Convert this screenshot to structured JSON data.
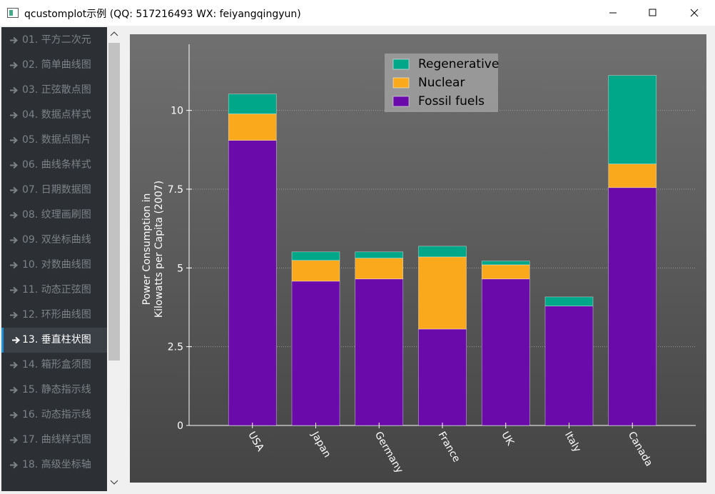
{
  "window": {
    "title": "qcustomplot示例 (QQ: 517216493 WX: feiyangqingyun)"
  },
  "sidebar": {
    "items": [
      "01. 平方二次元",
      "02. 简单曲线图",
      "03. 正弦散点图",
      "04. 数据点样式",
      "05. 数据点图片",
      "06. 曲线条样式",
      "07. 日期数据图",
      "08. 纹理画刷图",
      "09. 双坐标曲线",
      "10. 对数曲线图",
      "11. 动态正弦图",
      "12. 环形曲线图",
      "13. 垂直柱状图",
      "14. 箱形盒须图",
      "15. 静态指示线",
      "16. 动态指示线",
      "17. 曲线样式图",
      "18. 高级坐标轴"
    ],
    "selected_index": 12
  },
  "chart_data": {
    "type": "stacked_bar",
    "y_label": [
      "Power Consumption in",
      "Kilowatts per Capita (2007)"
    ],
    "categories": [
      "USA",
      "Japan",
      "Germany",
      "France",
      "UK",
      "Italy",
      "Canada"
    ],
    "series": [
      {
        "name": "Fossil fuels",
        "color": "#6a0aab",
        "values": [
          9.05,
          4.58,
          4.65,
          3.06,
          4.65,
          3.79,
          7.55
        ]
      },
      {
        "name": "Nuclear",
        "color": "#f9a91b",
        "values": [
          0.84,
          0.66,
          0.66,
          2.29,
          0.45,
          0,
          0.75
        ]
      },
      {
        "name": "Regenerative",
        "color": "#00a88a",
        "values": [
          0.63,
          0.27,
          0.2,
          0.34,
          0.12,
          0.29,
          2.81
        ]
      }
    ],
    "ylim": [
      0,
      12.1
    ],
    "yticks": [
      0,
      2.5,
      5,
      7.5,
      10
    ],
    "grid": true,
    "legend": "top"
  }
}
